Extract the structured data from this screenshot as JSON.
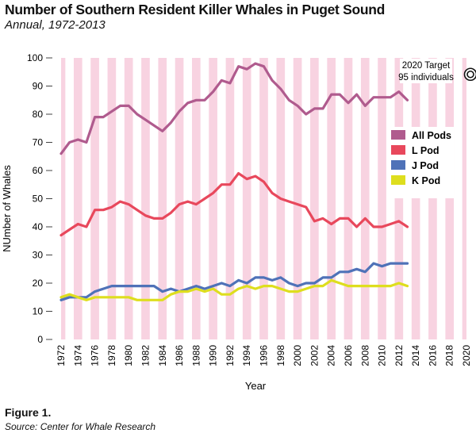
{
  "header": {
    "title": "Number of Southern Resident Killer Whales in Puget Sound",
    "subtitle": "Annual, 1972-2013"
  },
  "footer": {
    "figure_label": "Figure 1.",
    "source": "Source: Center for Whale Research"
  },
  "chart_data": {
    "type": "line",
    "xlabel": "Year",
    "ylabel": "NUmber of  Whales",
    "xlim": [
      1972,
      2020
    ],
    "ylim": [
      0,
      100
    ],
    "x_ticks": [
      1972,
      1974,
      1976,
      1978,
      1980,
      1982,
      1984,
      1986,
      1988,
      1990,
      1992,
      1994,
      1996,
      1998,
      2000,
      2002,
      2004,
      2006,
      2008,
      2010,
      2012,
      2014,
      2016,
      2018,
      2020
    ],
    "y_ticks": [
      0,
      10,
      20,
      30,
      40,
      50,
      60,
      70,
      80,
      90,
      100
    ],
    "background": "alternating vertical stripes: pink band on even years, white on odd years",
    "stripe_color": "#f8d3e1",
    "legend_position": "right",
    "target_annotation": {
      "line1": "2020 Target",
      "line2": "95 individuals",
      "year": 2020,
      "value": 95
    },
    "x": [
      1972,
      1973,
      1974,
      1975,
      1976,
      1977,
      1978,
      1979,
      1980,
      1981,
      1982,
      1983,
      1984,
      1985,
      1986,
      1987,
      1988,
      1989,
      1990,
      1991,
      1992,
      1993,
      1994,
      1995,
      1996,
      1997,
      1998,
      1999,
      2000,
      2001,
      2002,
      2003,
      2004,
      2005,
      2006,
      2007,
      2008,
      2009,
      2010,
      2011,
      2012,
      2013
    ],
    "series": [
      {
        "name": "All Pods",
        "color": "#b05b8e",
        "values": [
          66,
          70,
          71,
          70,
          79,
          79,
          81,
          83,
          83,
          80,
          78,
          76,
          74,
          77,
          81,
          84,
          85,
          85,
          88,
          92,
          91,
          97,
          96,
          98,
          97,
          92,
          89,
          85,
          83,
          80,
          82,
          82,
          87,
          87,
          84,
          87,
          83,
          86,
          86,
          86,
          88,
          85
        ]
      },
      {
        "name": "L Pod",
        "color": "#e8485c",
        "values": [
          37,
          39,
          41,
          40,
          46,
          46,
          47,
          49,
          48,
          46,
          44,
          43,
          43,
          45,
          48,
          49,
          48,
          50,
          52,
          55,
          55,
          59,
          57,
          58,
          56,
          52,
          50,
          49,
          48,
          47,
          42,
          43,
          41,
          43,
          43,
          40,
          43,
          40,
          40,
          41,
          42,
          40
        ]
      },
      {
        "name": "J Pod",
        "color": "#4f72b8",
        "values": [
          14,
          15,
          15,
          15,
          17,
          18,
          19,
          19,
          19,
          19,
          19,
          19,
          17,
          18,
          17,
          18,
          19,
          18,
          19,
          20,
          19,
          21,
          20,
          22,
          22,
          21,
          22,
          20,
          19,
          20,
          20,
          22,
          22,
          24,
          24,
          25,
          24,
          27,
          26,
          27,
          27,
          27
        ]
      },
      {
        "name": "K Pod",
        "color": "#dede1e",
        "values": [
          15,
          16,
          15,
          14,
          15,
          15,
          15,
          15,
          15,
          14,
          14,
          14,
          14,
          16,
          17,
          17,
          18,
          17,
          18,
          16,
          16,
          18,
          19,
          18,
          19,
          19,
          18,
          17,
          17,
          18,
          19,
          19,
          21,
          20,
          19,
          19,
          19,
          19,
          19,
          19,
          20,
          19
        ]
      }
    ]
  }
}
